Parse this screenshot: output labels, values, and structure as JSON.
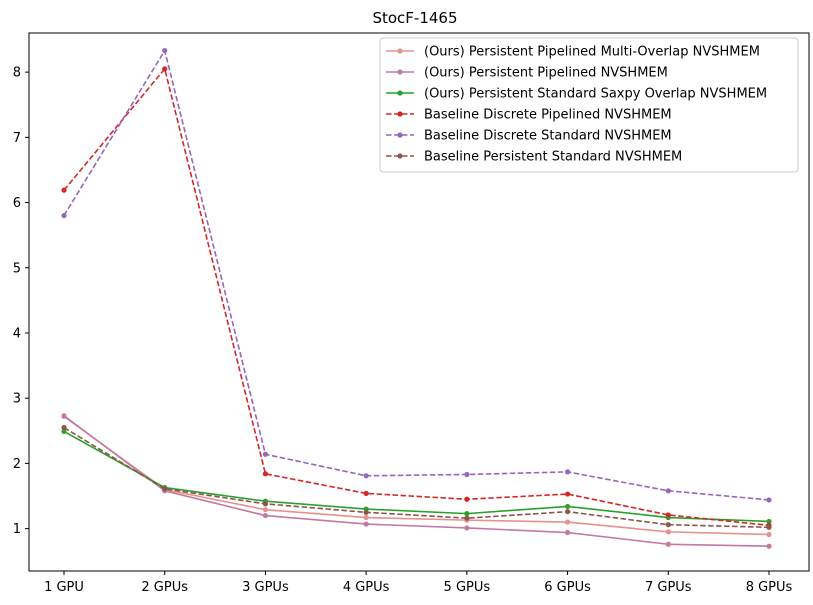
{
  "chart_data": {
    "type": "line",
    "title": "StocF-1465",
    "xlabel": "",
    "ylabel": "",
    "categories": [
      "1 GPU",
      "2 GPUs",
      "3 GPUs",
      "4 GPUs",
      "5 GPUs",
      "6 GPUs",
      "7 GPUs",
      "8 GPUs"
    ],
    "ylim": [
      0.35,
      8.6
    ],
    "yticks": [
      1,
      2,
      3,
      4,
      5,
      6,
      7,
      8
    ],
    "grid": false,
    "legend_position": "top-right",
    "series": [
      {
        "name": "(Ours) Persistent Pipelined Multi-Overlap NVSHMEM",
        "color": "#e8908c",
        "dash": "solid",
        "values": [
          2.72,
          1.6,
          1.29,
          1.17,
          1.13,
          1.1,
          0.95,
          0.91
        ]
      },
      {
        "name": "(Ours) Persistent Pipelined NVSHMEM",
        "color": "#c27aa3",
        "dash": "solid",
        "values": [
          2.73,
          1.58,
          1.2,
          1.07,
          1.01,
          0.94,
          0.76,
          0.73
        ]
      },
      {
        "name": "(Ours) Persistent Standard Saxpy Overlap NVSHMEM",
        "color": "#2ca02c",
        "dash": "solid",
        "values": [
          2.49,
          1.63,
          1.42,
          1.3,
          1.23,
          1.34,
          1.17,
          1.11
        ]
      },
      {
        "name": "Baseline Discrete Pipelined NVSHMEM",
        "color": "#d62728",
        "dash": "dashed",
        "values": [
          6.19,
          8.05,
          1.84,
          1.54,
          1.45,
          1.53,
          1.21,
          1.05
        ]
      },
      {
        "name": "Baseline Discrete Standard NVSHMEM",
        "color": "#9467bd",
        "dash": "dashed",
        "values": [
          5.8,
          8.33,
          2.14,
          1.81,
          1.83,
          1.87,
          1.58,
          1.44
        ]
      },
      {
        "name": "Baseline Persistent Standard NVSHMEM",
        "color": "#8c564b",
        "dash": "dashed",
        "values": [
          2.55,
          1.61,
          1.38,
          1.25,
          1.16,
          1.26,
          1.06,
          1.02
        ]
      }
    ]
  }
}
